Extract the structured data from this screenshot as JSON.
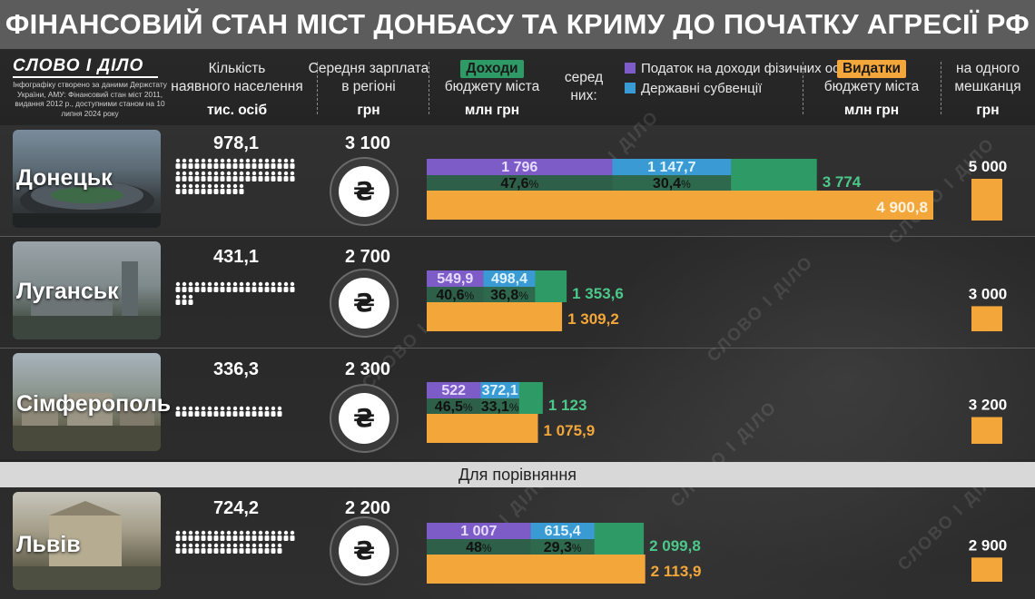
{
  "title": "ФІНАНСОВИЙ СТАН МІСТ ДОНБАСУ ТА КРИМУ ДО ПОЧАТКУ АГРЕСІЇ РФ",
  "logo": {
    "text": "СЛОВО І ДІЛО",
    "note": "Інфографіку створено за даними Держстату України, АМУ: Фінансовий стан міст 2011, видання 2012 р., доступними станом на 10 липня 2024 року"
  },
  "header": {
    "population": {
      "line1": "Кількість",
      "line2": "наявного населення",
      "unit": "тис. осіб"
    },
    "salary": {
      "line1": "Середня зарплата",
      "line2": "в регіоні",
      "unit": "грн"
    },
    "income": {
      "tag": "Доходи",
      "line2": "бюджету міста",
      "unit": "млн грн"
    },
    "among": {
      "line1": "серед",
      "line2": "них:"
    },
    "legend": {
      "pit": "Податок на доходи фізичних осіб",
      "subv": "Державні субвенції"
    },
    "expenses": {
      "tag": "Видатки",
      "line2": "бюджету міста",
      "unit": "млн грн"
    },
    "percap": {
      "line1": "на одного",
      "line2": "мешканця",
      "unit": "грн"
    }
  },
  "comparison_label": "Для порівняння",
  "watermark": "СЛОВО І ДІЛО",
  "colors": {
    "income": "#2e9a66",
    "pit": "#7d5cc8",
    "subv": "#3a9ad4",
    "expenses": "#f3a73b",
    "title_bg": "#5c5c5c"
  },
  "icons": {
    "salary": "hryvnia-coin-icon",
    "population": "person-icon"
  },
  "cities": [
    {
      "name": "Донецьк",
      "population": "978,1",
      "salary": "3 100",
      "pit_label": "1 796",
      "pit_pct_num": "47,6",
      "pit_pct_sym": "%",
      "subv_label": "1 147,7",
      "subv_pct_num": "30,4",
      "subv_pct_sym": "%",
      "income_label": "3 774",
      "expenses_label": "4 900,8",
      "percap_label": "5 000"
    },
    {
      "name": "Луганськ",
      "population": "431,1",
      "salary": "2 700",
      "pit_label": "549,9",
      "pit_pct_num": "40,6",
      "pit_pct_sym": "%",
      "subv_label": "498,4",
      "subv_pct_num": "36,8",
      "subv_pct_sym": "%",
      "income_label": "1 353,6",
      "expenses_label": "1 309,2",
      "percap_label": "3 000"
    },
    {
      "name": "Сімферополь",
      "population": "336,3",
      "salary": "2 300",
      "pit_label": "522",
      "pit_pct_num": "46,5",
      "pit_pct_sym": "%",
      "subv_label": "372,1",
      "subv_pct_num": "33,1",
      "subv_pct_sym": "%",
      "income_label": "1 123",
      "expenses_label": "1 075,9",
      "percap_label": "3 200"
    },
    {
      "name": "Львів",
      "population": "724,2",
      "salary": "2 200",
      "pit_label": "1 007",
      "pit_pct_num": "48",
      "pit_pct_sym": "%",
      "subv_label": "615,4",
      "subv_pct_num": "29,3",
      "subv_pct_sym": "%",
      "income_label": "2 099,8",
      "expenses_label": "2 113,9",
      "percap_label": "2 900"
    }
  ],
  "chart_data": {
    "type": "bar",
    "categories": [
      "Донецьк",
      "Луганськ",
      "Сімферополь",
      "Львів"
    ],
    "series": [
      {
        "name": "Доходи бюджету міста",
        "unit": "млн грн",
        "values": [
          3774,
          1353.6,
          1123,
          2099.8
        ]
      },
      {
        "name": "Податок на доходи фізичних осіб",
        "unit": "млн грн",
        "values": [
          1796,
          549.9,
          522,
          1007
        ],
        "share_pct": [
          47.6,
          40.6,
          46.5,
          48
        ]
      },
      {
        "name": "Державні субвенції",
        "unit": "млн грн",
        "values": [
          1147.7,
          498.4,
          372.1,
          615.4
        ],
        "share_pct": [
          30.4,
          36.8,
          33.1,
          29.3
        ]
      },
      {
        "name": "Видатки бюджету міста",
        "unit": "млн грн",
        "values": [
          4900.8,
          1309.2,
          1075.9,
          2113.9
        ]
      },
      {
        "name": "на одного мешканця",
        "unit": "грн",
        "values": [
          5000,
          3000,
          3200,
          2900
        ]
      }
    ],
    "population_thousands": [
      978.1,
      431.1,
      336.3,
      724.2
    ],
    "avg_salary_uah": [
      3100,
      2700,
      2300,
      2200
    ]
  }
}
